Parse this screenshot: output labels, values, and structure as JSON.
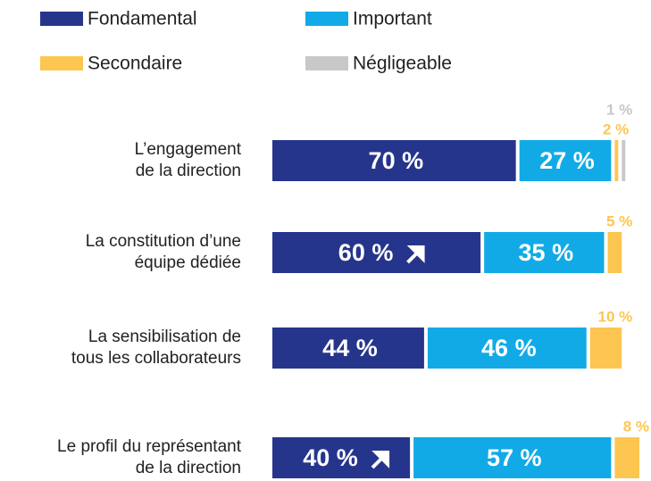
{
  "chart_data": {
    "type": "stacked-bar-horizontal",
    "categories": [
      [
        "L’engagement",
        "de la direction"
      ],
      [
        "La constitution d’une",
        "équipe dédiée"
      ],
      [
        "La sensibilisation de",
        "tous les collaborateurs"
      ],
      [
        "Le profil du représentant",
        "de la direction"
      ]
    ],
    "series": [
      {
        "name": "Fondamental",
        "color": "#26358c",
        "values": [
          70,
          60,
          44,
          40
        ],
        "value_labels": [
          "70 %",
          "60 %",
          "44 %",
          "40 %"
        ]
      },
      {
        "name": "Important",
        "color": "#12aae6",
        "values": [
          27,
          35,
          46,
          57
        ],
        "value_labels": [
          "27 %",
          "35 %",
          "46 %",
          "57 %"
        ]
      },
      {
        "name": "Secondaire",
        "color": "#fdc650",
        "values": [
          2,
          5,
          10,
          8
        ],
        "value_labels": [
          "2 %",
          "5 %",
          "10 %",
          "8 %"
        ]
      },
      {
        "name": "Négligeable",
        "color": "#c8c8c8",
        "values": [
          1,
          0,
          0,
          0
        ],
        "value_labels": [
          "1 %",
          null,
          null,
          null
        ]
      }
    ],
    "trend_up": [
      false,
      true,
      false,
      true
    ],
    "xlim": [
      0,
      105
    ]
  }
}
